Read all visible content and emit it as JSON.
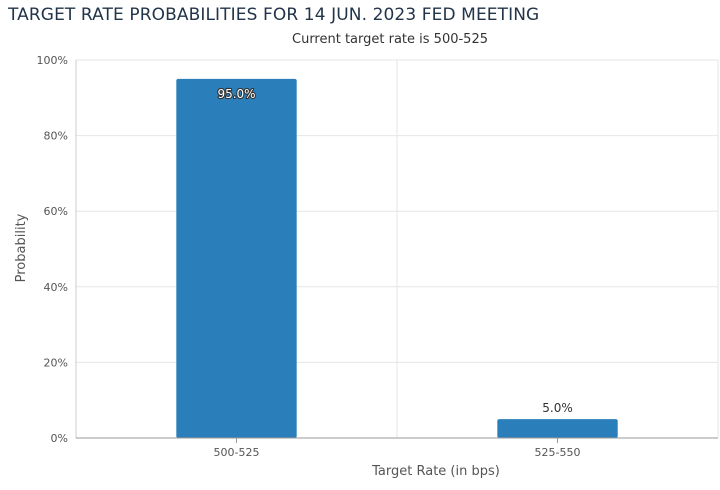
{
  "chart_data": {
    "type": "bar",
    "title": "TARGET RATE PROBABILITIES FOR 14 JUN. 2023 FED MEETING",
    "subtitle": "Current target rate is 500-525",
    "xlabel": "Target Rate (in bps)",
    "ylabel": "Probability",
    "categories": [
      "500-525",
      "525-550"
    ],
    "values": [
      95.0,
      5.0
    ],
    "data_labels": [
      "95.0%",
      "5.0%"
    ],
    "ylim": [
      0,
      100
    ],
    "yticks": [
      0,
      20,
      40,
      60,
      80,
      100
    ],
    "ytick_labels": [
      "0%",
      "20%",
      "40%",
      "60%",
      "80%",
      "100%"
    ],
    "grid": true,
    "legend": "none",
    "colors": {
      "bar": "#2a7fba",
      "grid": "#e6e6e6",
      "axis": "#999999",
      "title": "#22344a"
    }
  }
}
